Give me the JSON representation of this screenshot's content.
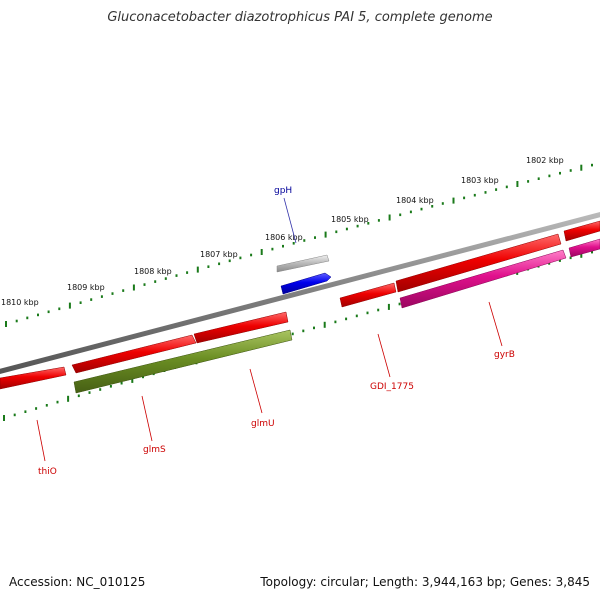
{
  "title": "Gluconacetobacter diazotrophicus PAI 5, complete genome",
  "footer": {
    "accession": "Accession: NC_010125",
    "summary": "Topology: circular; Length: 3,944,163 bp; Genes: 3,845"
  },
  "scale_labels": [
    "1802 kbp",
    "1803 kbp",
    "1804 kbp",
    "1805 kbp",
    "1806 kbp",
    "1807 kbp",
    "1808 kbp",
    "1809 kbp",
    "1810 kbp"
  ],
  "gene_labels": [
    {
      "id": "gpH",
      "text": "gpH",
      "color": "#000099"
    },
    {
      "id": "thiO",
      "text": "thiO",
      "color": "#cc0000"
    },
    {
      "id": "glmS",
      "text": "glmS",
      "color": "#cc0000"
    },
    {
      "id": "glmU",
      "text": "glmU",
      "color": "#cc0000"
    },
    {
      "id": "GDI_1775",
      "text": "GDI_1775",
      "color": "#cc0000"
    },
    {
      "id": "gyrB",
      "text": "gyrB",
      "color": "#cc0000"
    }
  ],
  "colors": {
    "backbone": "#808080",
    "cds": "#ee0000",
    "glm": "#6b8e23",
    "magenta": "#e0108c",
    "blue": "#0000ee",
    "grey": "#b0b0b0",
    "ticks": "#1a7a1a"
  }
}
